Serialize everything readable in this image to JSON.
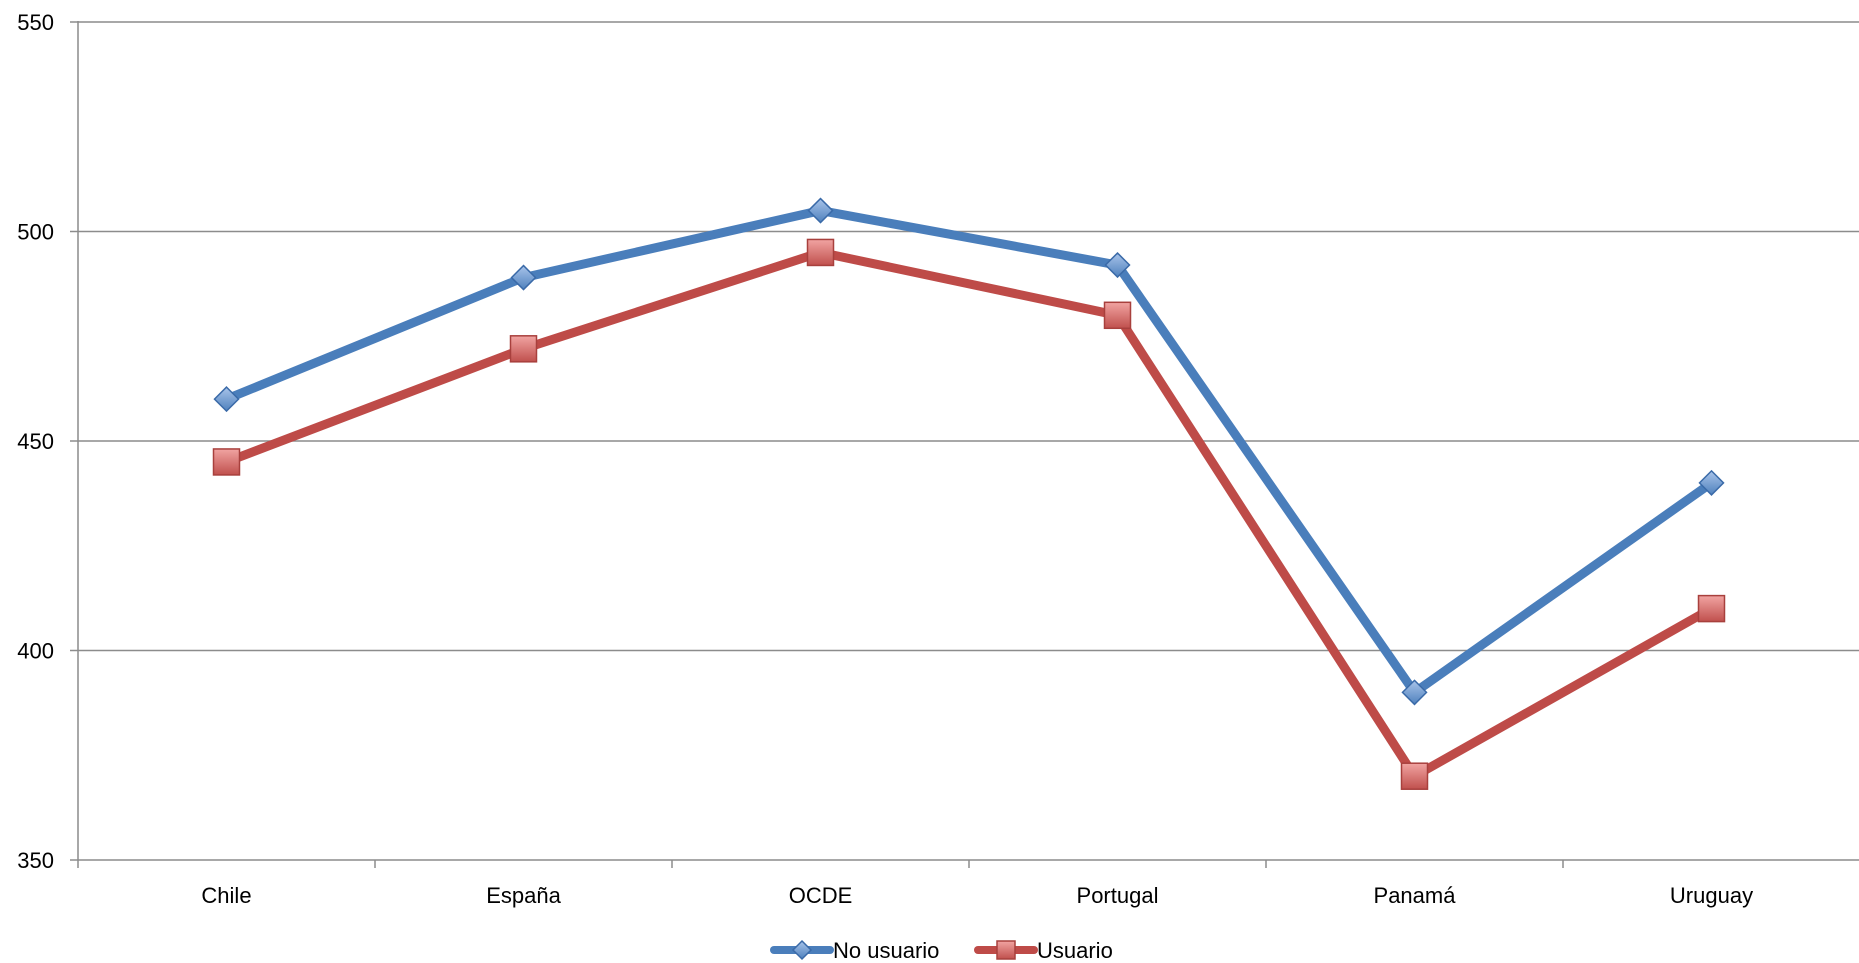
{
  "chart_data": {
    "type": "line",
    "categories": [
      "Chile",
      "España",
      "OCDE",
      "Portugal",
      "Panamá",
      "Uruguay"
    ],
    "series": [
      {
        "name": "No usuario",
        "values": [
          460,
          489,
          505,
          492,
          390,
          440
        ],
        "color": "#4a7ebb",
        "marker": "diamond"
      },
      {
        "name": "Usuario",
        "values": [
          445,
          472,
          495,
          480,
          370,
          410
        ],
        "color": "#be4b48",
        "marker": "square"
      }
    ],
    "yticks": [
      350,
      400,
      450,
      500,
      550
    ],
    "ylim": [
      350,
      550
    ],
    "grid": true,
    "legend": "bottom-center",
    "title": "",
    "xlabel": "",
    "ylabel": ""
  }
}
